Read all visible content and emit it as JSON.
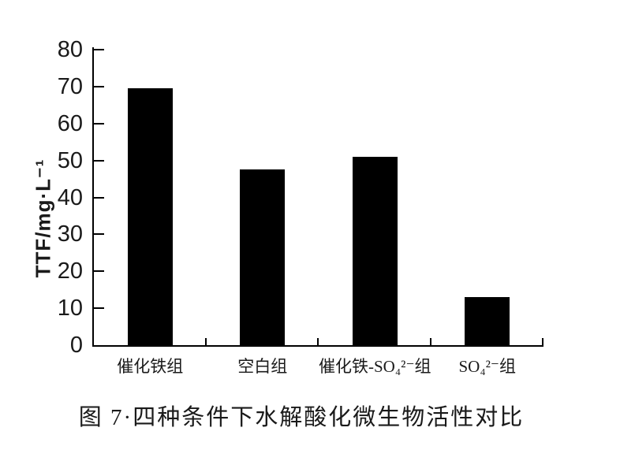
{
  "figure": {
    "caption": "图 7·四种条件下水解酸化微生物活性对比"
  },
  "chart_data": {
    "type": "bar",
    "categories": [
      "催化铁组",
      "空白组",
      "催化铁-SO₄²⁻组",
      "SO₄²⁻组"
    ],
    "values": [
      69.5,
      47.5,
      51,
      13
    ],
    "title": "图 7·四种条件下水解酸化微生物活性对比",
    "xlabel": "",
    "ylabel": "TTF/mg·L⁻¹",
    "ylim": [
      0,
      80
    ],
    "yticks": [
      0,
      10,
      20,
      30,
      40,
      50,
      60,
      70,
      80
    ],
    "grid": false,
    "legend": null,
    "bar_color": "#000000",
    "axis_color": "#000000",
    "text_color": "#1a1a1a",
    "background": "#ffffff"
  }
}
